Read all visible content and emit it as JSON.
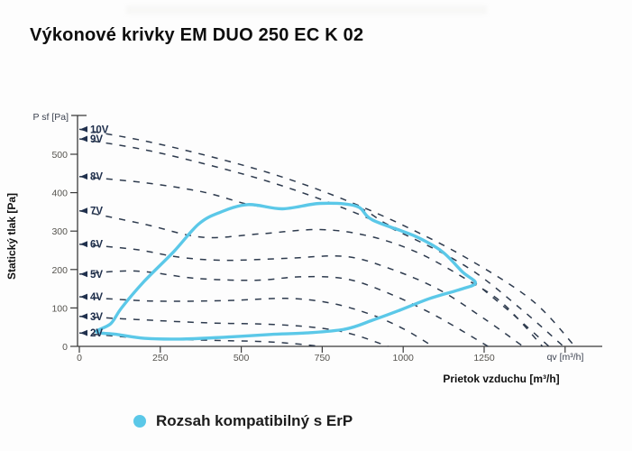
{
  "title": "Výkonové krivky EM DUO 250 EC K 02",
  "legend": {
    "label": "Rozsah kompatibilný s ErP"
  },
  "colors": {
    "erp_range": "#5bc8e8",
    "dashed_curve": "#2e3b4e",
    "axis": "#3a3a3a",
    "curve_label": "#20304d"
  },
  "chart_data": {
    "type": "line",
    "title": "Výkonové krivky EM DUO 250 EC K 02",
    "xlabel": "Prietok vzduchu [m³/h]",
    "ylabel": "Statický tlak [Pa]",
    "x_axis_unit_label": "qv [m³/h]",
    "y_axis_unit_label": "P sf [Pa]",
    "x_ticks": [
      0,
      250,
      500,
      750,
      1000,
      1250
    ],
    "x_unlabeled_ticks": [
      1500
    ],
    "y_ticks": [
      0,
      100,
      200,
      300,
      400,
      500
    ],
    "xlim": [
      0,
      1615
    ],
    "ylim": [
      0,
      600
    ],
    "grid": false,
    "legend_position": "bottom",
    "series": [
      {
        "name": "10V",
        "style": "dashed",
        "points": [
          [
            0,
            565
          ],
          [
            200,
            535
          ],
          [
            400,
            495
          ],
          [
            600,
            448
          ],
          [
            800,
            388
          ],
          [
            1000,
            315
          ],
          [
            1200,
            228
          ],
          [
            1400,
            118
          ],
          [
            1530,
            0
          ]
        ]
      },
      {
        "name": "9V",
        "style": "dashed",
        "points": [
          [
            0,
            540
          ],
          [
            200,
            512
          ],
          [
            400,
            472
          ],
          [
            600,
            425
          ],
          [
            800,
            365
          ],
          [
            1000,
            293
          ],
          [
            1200,
            205
          ],
          [
            1360,
            100
          ],
          [
            1495,
            0
          ]
        ]
      },
      {
        "name": "8V",
        "style": "dashed",
        "points": [
          [
            0,
            442
          ],
          [
            200,
            426
          ],
          [
            380,
            402
          ],
          [
            520,
            370
          ],
          [
            627,
            359
          ],
          [
            744,
            371
          ],
          [
            855,
            364
          ],
          [
            950,
            318
          ],
          [
            1036,
            288
          ],
          [
            1120,
            248
          ],
          [
            1184,
            195
          ],
          [
            1223,
            165
          ],
          [
            1330,
            90
          ],
          [
            1450,
            0
          ]
        ]
      },
      {
        "name": "7V",
        "style": "dashed",
        "points": [
          [
            0,
            353
          ],
          [
            200,
            318
          ],
          [
            380,
            284
          ],
          [
            560,
            293
          ],
          [
            744,
            304
          ],
          [
            900,
            286
          ],
          [
            1050,
            242
          ],
          [
            1200,
            172
          ],
          [
            1310,
            110
          ],
          [
            1430,
            0
          ]
        ]
      },
      {
        "name": "6V",
        "style": "dashed",
        "points": [
          [
            0,
            266
          ],
          [
            175,
            252
          ],
          [
            310,
            232
          ],
          [
            450,
            224
          ],
          [
            640,
            229
          ],
          [
            820,
            234
          ],
          [
            960,
            202
          ],
          [
            1110,
            148
          ],
          [
            1250,
            72
          ],
          [
            1370,
            0
          ]
        ]
      },
      {
        "name": "5V",
        "style": "dashed",
        "points": [
          [
            0,
            188
          ],
          [
            175,
            196
          ],
          [
            360,
            177
          ],
          [
            545,
            172
          ],
          [
            680,
            181
          ],
          [
            820,
            176
          ],
          [
            950,
            140
          ],
          [
            1100,
            80
          ],
          [
            1262,
            0
          ]
        ]
      },
      {
        "name": "4V",
        "style": "dashed",
        "points": [
          [
            0,
            129
          ],
          [
            220,
            118
          ],
          [
            450,
            119
          ],
          [
            640,
            125
          ],
          [
            780,
            112
          ],
          [
            900,
            83
          ],
          [
            1000,
            46
          ],
          [
            1092,
            0
          ]
        ]
      },
      {
        "name": "3V",
        "style": "dashed",
        "points": [
          [
            0,
            78
          ],
          [
            175,
            70
          ],
          [
            400,
            61
          ],
          [
            600,
            57
          ],
          [
            750,
            47
          ],
          [
            850,
            30
          ],
          [
            953,
            0
          ]
        ]
      },
      {
        "name": "2V",
        "style": "dashed",
        "points": [
          [
            0,
            35
          ],
          [
            200,
            21
          ],
          [
            400,
            16
          ],
          [
            550,
            13
          ],
          [
            650,
            8
          ],
          [
            744,
            0
          ]
        ]
      }
    ],
    "envelope": {
      "name": "Rozsah kompatibilný s ErP",
      "style": "solid",
      "closed": true,
      "points": [
        [
          53,
          38
        ],
        [
          97,
          59
        ],
        [
          131,
          101
        ],
        [
          200,
          169
        ],
        [
          292,
          247
        ],
        [
          368,
          318
        ],
        [
          432,
          348
        ],
        [
          521,
          369
        ],
        [
          627,
          358
        ],
        [
          744,
          372
        ],
        [
          855,
          365
        ],
        [
          905,
          329
        ],
        [
          1036,
          287
        ],
        [
          1120,
          247
        ],
        [
          1184,
          193
        ],
        [
          1223,
          165
        ],
        [
          1175,
          148
        ],
        [
          1083,
          125
        ],
        [
          989,
          94
        ],
        [
          905,
          68
        ],
        [
          822,
          45
        ],
        [
          702,
          35
        ],
        [
          590,
          31
        ],
        [
          451,
          24
        ],
        [
          312,
          19
        ],
        [
          201,
          21
        ],
        [
          117,
          31
        ]
      ]
    }
  }
}
